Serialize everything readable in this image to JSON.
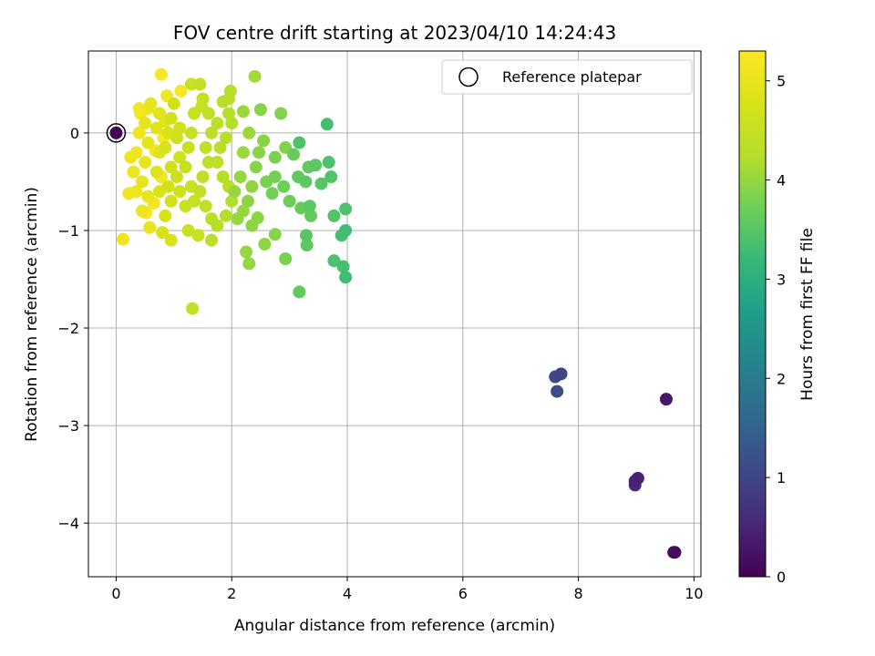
{
  "chart_data": {
    "type": "scatter",
    "title": "FOV centre drift starting at 2023/04/10 14:24:43",
    "xlabel": "Angular distance from reference (arcmin)",
    "ylabel": "Rotation from reference (arcmin)",
    "xlim": [
      -0.48,
      10.12
    ],
    "ylim": [
      -4.55,
      0.84
    ],
    "xticks": [
      0,
      2,
      4,
      6,
      8,
      10
    ],
    "xtick_labels": [
      "0",
      "2",
      "4",
      "6",
      "8",
      "10"
    ],
    "yticks": [
      0,
      -1,
      -2,
      -3,
      -4
    ],
    "ytick_labels": [
      "0",
      "−1",
      "−2",
      "−3",
      "−4"
    ],
    "grid": true,
    "legend": {
      "label": "Reference platepar",
      "placement": "top-right"
    },
    "reference_point": {
      "x": 0,
      "y": 0,
      "hours": 0
    },
    "colorbar": {
      "label": "Hours from first FF file",
      "range": [
        0,
        5.3
      ],
      "ticks": [
        0,
        1,
        2,
        3,
        4,
        5
      ],
      "tick_labels": [
        "0",
        "1",
        "2",
        "3",
        "4",
        "5"
      ],
      "colormap": "viridis"
    },
    "points": [
      [
        0,
        0,
        0.02
      ],
      [
        9.67,
        -4.3,
        0.15
      ],
      [
        9.65,
        -4.3,
        0.2
      ],
      [
        9.52,
        -2.73,
        0.3
      ],
      [
        8.98,
        -3.57,
        0.45
      ],
      [
        9.03,
        -3.54,
        0.5
      ],
      [
        8.98,
        -3.61,
        0.55
      ],
      [
        7.7,
        -2.47,
        1.0
      ],
      [
        7.6,
        -2.5,
        1.05
      ],
      [
        7.63,
        -2.65,
        1.1
      ],
      [
        3.97,
        -1.48,
        3.3
      ],
      [
        3.93,
        -1.37,
        3.35
      ],
      [
        3.77,
        -1.31,
        3.4
      ],
      [
        3.97,
        -1.0,
        3.3
      ],
      [
        3.9,
        -1.05,
        3.35
      ],
      [
        3.97,
        -0.78,
        3.4
      ],
      [
        3.77,
        -0.85,
        3.45
      ],
      [
        3.29,
        -1.05,
        3.5
      ],
      [
        3.3,
        -1.15,
        3.55
      ],
      [
        3.17,
        -0.1,
        3.4
      ],
      [
        3.65,
        0.09,
        3.35
      ],
      [
        3.68,
        -0.3,
        3.4
      ],
      [
        3.72,
        -0.45,
        3.45
      ],
      [
        3.55,
        -0.52,
        3.5
      ],
      [
        3.45,
        -0.33,
        3.55
      ],
      [
        3.33,
        -0.35,
        3.6
      ],
      [
        3.28,
        -0.5,
        3.55
      ],
      [
        3.15,
        -0.45,
        3.6
      ],
      [
        3.07,
        -0.22,
        3.65
      ],
      [
        3.35,
        -0.75,
        3.55
      ],
      [
        3.37,
        -0.85,
        3.6
      ],
      [
        3.2,
        -0.77,
        3.65
      ],
      [
        3.0,
        -0.7,
        3.7
      ],
      [
        2.9,
        -0.55,
        3.7
      ],
      [
        2.75,
        -0.45,
        3.75
      ],
      [
        2.7,
        -0.62,
        3.75
      ],
      [
        2.6,
        -0.5,
        3.8
      ],
      [
        2.75,
        -0.25,
        3.8
      ],
      [
        2.93,
        -0.15,
        3.85
      ],
      [
        2.85,
        0.2,
        3.85
      ],
      [
        2.5,
        0.24,
        3.9
      ],
      [
        2.55,
        -0.08,
        3.9
      ],
      [
        2.47,
        -0.2,
        3.9
      ],
      [
        2.42,
        -0.35,
        3.9
      ],
      [
        2.35,
        -0.55,
        3.95
      ],
      [
        2.28,
        -0.7,
        3.95
      ],
      [
        2.45,
        -0.87,
        3.95
      ],
      [
        2.35,
        -0.95,
        3.95
      ],
      [
        2.2,
        -0.8,
        4.0
      ],
      [
        2.1,
        -0.88,
        4.0
      ],
      [
        2.05,
        -0.6,
        4.0
      ],
      [
        2.15,
        -0.45,
        4.0
      ],
      [
        2.2,
        -0.2,
        4.05
      ],
      [
        2.3,
        0.0,
        4.05
      ],
      [
        2.2,
        0.22,
        4.05
      ],
      [
        2.4,
        0.58,
        4.1
      ],
      [
        2.75,
        -1.04,
        3.9
      ],
      [
        2.57,
        -1.14,
        3.95
      ],
      [
        2.25,
        -1.22,
        4.0
      ],
      [
        2.3,
        -1.34,
        4.0
      ],
      [
        2.93,
        -1.29,
        3.8
      ],
      [
        3.17,
        -1.63,
        3.6
      ],
      [
        1.98,
        0.43,
        4.25
      ],
      [
        1.95,
        0.35,
        4.3
      ],
      [
        1.85,
        0.32,
        4.3
      ],
      [
        1.95,
        0.2,
        4.3
      ],
      [
        2.0,
        0.1,
        4.25
      ],
      [
        1.9,
        -0.05,
        4.3
      ],
      [
        1.8,
        -0.15,
        4.3
      ],
      [
        1.75,
        -0.3,
        4.35
      ],
      [
        1.85,
        -0.45,
        4.3
      ],
      [
        1.95,
        -0.55,
        4.25
      ],
      [
        2.0,
        -0.7,
        4.2
      ],
      [
        1.9,
        -0.85,
        4.25
      ],
      [
        1.75,
        -0.95,
        4.3
      ],
      [
        1.65,
        -0.88,
        4.35
      ],
      [
        1.55,
        -0.75,
        4.4
      ],
      [
        1.45,
        -0.6,
        4.4
      ],
      [
        1.5,
        -0.45,
        4.4
      ],
      [
        1.6,
        -0.3,
        4.35
      ],
      [
        1.55,
        -0.15,
        4.4
      ],
      [
        1.65,
        0.0,
        4.35
      ],
      [
        1.75,
        0.1,
        4.35
      ],
      [
        1.6,
        0.2,
        4.4
      ],
      [
        1.5,
        0.35,
        4.45
      ],
      [
        1.45,
        0.5,
        4.45
      ],
      [
        1.48,
        0.27,
        4.5
      ],
      [
        1.3,
        0.5,
        4.5
      ],
      [
        1.35,
        0.2,
        4.5
      ],
      [
        1.3,
        0.0,
        4.5
      ],
      [
        1.25,
        -0.15,
        4.55
      ],
      [
        1.2,
        -0.35,
        4.55
      ],
      [
        1.3,
        -0.55,
        4.5
      ],
      [
        1.35,
        -0.7,
        4.5
      ],
      [
        1.2,
        -0.75,
        4.55
      ],
      [
        1.1,
        -0.6,
        4.6
      ],
      [
        1.05,
        -0.45,
        4.6
      ],
      [
        1.1,
        -0.25,
        4.6
      ],
      [
        1.05,
        -0.05,
        4.6
      ],
      [
        1.1,
        0.05,
        4.65
      ],
      [
        1.25,
        -1.0,
        4.55
      ],
      [
        1.42,
        -1.05,
        4.55
      ],
      [
        1.65,
        -1.1,
        4.35
      ],
      [
        1.32,
        -1.8,
        4.45
      ],
      [
        1.0,
        0.3,
        4.7
      ],
      [
        0.95,
        0.15,
        4.7
      ],
      [
        0.9,
        0.0,
        4.75
      ],
      [
        0.85,
        -0.15,
        4.75
      ],
      [
        0.95,
        -0.35,
        4.7
      ],
      [
        0.9,
        -0.55,
        4.7
      ],
      [
        0.95,
        -0.7,
        4.7
      ],
      [
        0.85,
        -0.85,
        4.75
      ],
      [
        0.8,
        -1.02,
        4.8
      ],
      [
        0.95,
        -1.1,
        4.8
      ],
      [
        0.75,
        -0.6,
        4.8
      ],
      [
        0.7,
        -0.4,
        4.85
      ],
      [
        0.75,
        -0.2,
        4.85
      ],
      [
        0.7,
        0.05,
        4.9
      ],
      [
        0.75,
        0.2,
        4.9
      ],
      [
        0.85,
        0.12,
        4.9
      ],
      [
        0.6,
        0.3,
        4.95
      ],
      [
        0.5,
        0.1,
        4.95
      ],
      [
        0.55,
        -0.1,
        4.95
      ],
      [
        0.5,
        -0.3,
        5.0
      ],
      [
        0.45,
        -0.5,
        5.0
      ],
      [
        0.55,
        -0.65,
        5.0
      ],
      [
        0.45,
        -0.8,
        5.05
      ],
      [
        0.35,
        -0.6,
        5.05
      ],
      [
        0.3,
        -0.4,
        5.05
      ],
      [
        0.35,
        -0.2,
        5.1
      ],
      [
        0.4,
        0.0,
        5.1
      ],
      [
        0.42,
        0.2,
        5.15
      ],
      [
        0.4,
        0.25,
        5.15
      ],
      [
        0.55,
        0.25,
        5.1
      ],
      [
        0.25,
        -0.25,
        5.1
      ],
      [
        0.22,
        -0.62,
        5.1
      ],
      [
        0.12,
        -1.09,
        5.05
      ],
      [
        0.58,
        -0.97,
        5.0
      ],
      [
        0.78,
        0.6,
        5.2
      ],
      [
        0.88,
        0.38,
        5.15
      ],
      [
        1.12,
        0.43,
        5.2
      ],
      [
        0.68,
        -0.18,
        5.2
      ],
      [
        0.52,
        -0.82,
        5.2
      ],
      [
        0.82,
        -0.05,
        5.25
      ],
      [
        0.65,
        -0.72,
        5.15
      ],
      [
        0.78,
        -0.45,
        5.15
      ]
    ]
  }
}
